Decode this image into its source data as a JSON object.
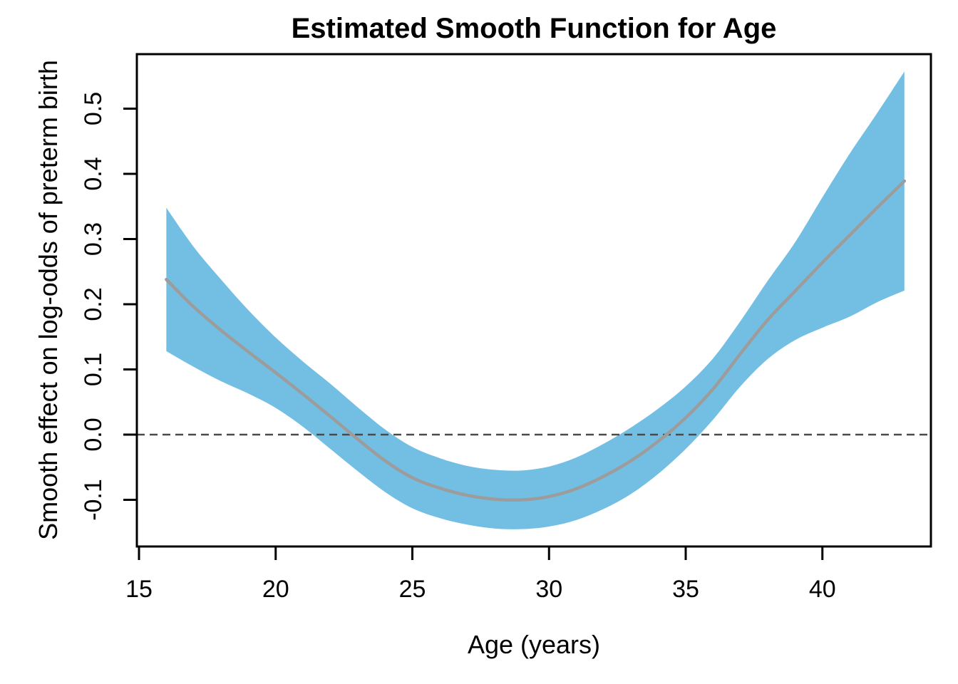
{
  "title": "Estimated Smooth Function for Age",
  "x_axis": {
    "label": "Age (years)",
    "tick_values": [
      15,
      20,
      25,
      30,
      35,
      40
    ],
    "tick_labels": [
      "15",
      "20",
      "25",
      "30",
      "35",
      "40"
    ]
  },
  "y_axis": {
    "label": "Smooth effect on log-odds of preterm birth",
    "tick_values": [
      -0.1,
      0.0,
      0.1,
      0.2,
      0.3,
      0.4,
      0.5
    ],
    "tick_labels": [
      "-0.1",
      "0.0",
      "0.1",
      "0.2",
      "0.3",
      "0.4",
      "0.5"
    ]
  },
  "colors": {
    "band": "#73BFE4",
    "fit_line": "#9C9C9C",
    "zero_line": "#4A4A4A",
    "axis": "#000000",
    "background": "#FFFFFF"
  },
  "chart_data": {
    "type": "line",
    "title": "Estimated Smooth Function for Age",
    "xlabel": "Age (years)",
    "ylabel": "Smooth effect on log-odds of preterm birth",
    "x": [
      16,
      17,
      18,
      19,
      20,
      21,
      22,
      23,
      24,
      25,
      26,
      27,
      28,
      29,
      30,
      31,
      32,
      33,
      34,
      35,
      36,
      37,
      38,
      39,
      40,
      41,
      42,
      43
    ],
    "series": [
      {
        "name": "smooth_fit",
        "values": [
          0.238,
          0.196,
          0.16,
          0.127,
          0.095,
          0.062,
          0.028,
          -0.007,
          -0.04,
          -0.066,
          -0.082,
          -0.093,
          -0.099,
          -0.1,
          -0.095,
          -0.083,
          -0.064,
          -0.04,
          -0.01,
          0.026,
          0.07,
          0.124,
          0.176,
          0.22,
          0.264,
          0.306,
          0.348,
          0.389
        ]
      },
      {
        "name": "ci_lower",
        "values": [
          0.128,
          0.104,
          0.082,
          0.063,
          0.041,
          0.012,
          -0.022,
          -0.056,
          -0.088,
          -0.113,
          -0.128,
          -0.138,
          -0.144,
          -0.145,
          -0.141,
          -0.131,
          -0.114,
          -0.091,
          -0.06,
          -0.022,
          0.023,
          0.074,
          0.116,
          0.145,
          0.164,
          0.181,
          0.203,
          0.221
        ]
      },
      {
        "name": "ci_upper",
        "values": [
          0.348,
          0.288,
          0.238,
          0.191,
          0.149,
          0.112,
          0.078,
          0.042,
          0.008,
          -0.019,
          -0.036,
          -0.048,
          -0.054,
          -0.055,
          -0.049,
          -0.035,
          -0.014,
          0.011,
          0.04,
          0.074,
          0.117,
          0.174,
          0.236,
          0.295,
          0.364,
          0.431,
          0.493,
          0.557
        ]
      }
    ],
    "reference_line_y": 0.0,
    "xlim": [
      14.9,
      44.0
    ],
    "ylim": [
      -0.172,
      0.584
    ],
    "grid": false,
    "legend": "none"
  }
}
